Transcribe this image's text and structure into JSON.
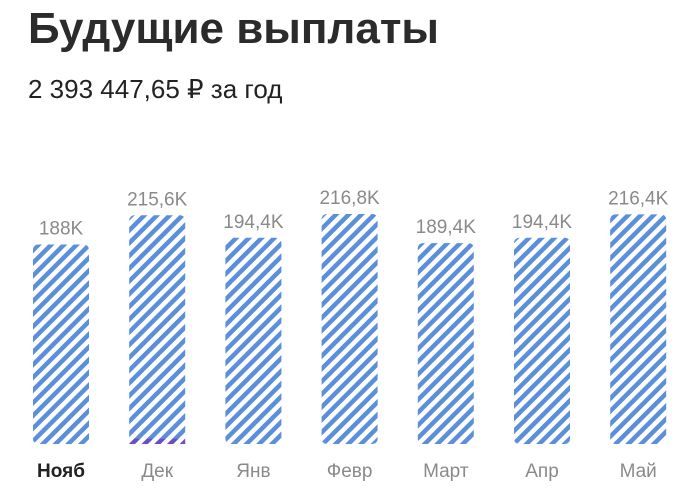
{
  "header": {
    "title": "Будущие выплаты",
    "subtitle": "2 393 447,65 ₽ за год"
  },
  "colors": {
    "stripe": "#5b8fd9",
    "stripe_accent": "#6a4fc4",
    "value_label": "#8a8a8a",
    "month_label": "#8a8a8a",
    "month_label_active": "#222222"
  },
  "chart_data": {
    "type": "bar",
    "categories": [
      "Нояб",
      "Дек",
      "Янв",
      "Февр",
      "Март",
      "Апр",
      "Май"
    ],
    "values": [
      188,
      215.6,
      194.4,
      216.8,
      189.4,
      194.4,
      216.4
    ],
    "value_labels": [
      "188K",
      "215,6K",
      "194,4K",
      "216,8K",
      "189,4K",
      "194,4K",
      "216,4K"
    ],
    "accent_values": [
      0,
      5,
      0,
      0,
      0,
      0,
      0
    ],
    "active_category": "Нояб",
    "ylim": [
      0,
      216.8
    ],
    "grid": false,
    "legend": "none"
  }
}
